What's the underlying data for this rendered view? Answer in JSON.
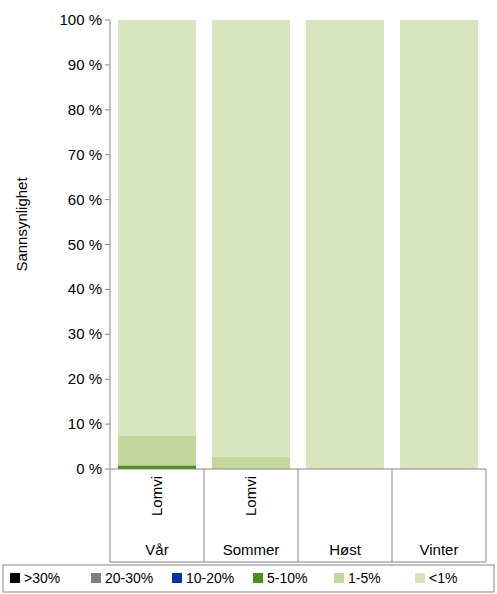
{
  "chart_data": {
    "type": "bar",
    "stacked": true,
    "y_label": "Sannsynlighet",
    "categories": [
      "Vår",
      "Sommer",
      "Høst",
      "Vinter"
    ],
    "subcategories": [
      "Lomvi",
      "Lomvi",
      null,
      null
    ],
    "ylim": [
      0,
      100
    ],
    "yticks": [
      {
        "value": 0,
        "label": "0 %"
      },
      {
        "value": 10,
        "label": "10 %"
      },
      {
        "value": 20,
        "label": "20 %"
      },
      {
        "value": 30,
        "label": "30 %"
      },
      {
        "value": 40,
        "label": "40 %"
      },
      {
        "value": 50,
        "label": "50 %"
      },
      {
        "value": 60,
        "label": "60 %"
      },
      {
        "value": 70,
        "label": "70 %"
      },
      {
        "value": 80,
        "label": "80 %"
      },
      {
        "value": 90,
        "label": "90 %"
      },
      {
        "value": 100,
        "label": "100 %"
      }
    ],
    "grid": false,
    "legend": "bottom",
    "series": [
      {
        "name": ">30%",
        "color": "#000000",
        "values": [
          0,
          0,
          0,
          0
        ]
      },
      {
        "name": "20-30%",
        "color": "#7f7f7f",
        "values": [
          0,
          0,
          0,
          0
        ]
      },
      {
        "name": "10-20%",
        "color": "#0033a0",
        "values": [
          0,
          0,
          0,
          0
        ]
      },
      {
        "name": "5-10%",
        "color": "#4e8f1a",
        "values": [
          0.8,
          0,
          0,
          0
        ]
      },
      {
        "name": "1-5%",
        "color": "#c3d69b",
        "values": [
          6.7,
          2.7,
          0,
          0
        ]
      },
      {
        "name": "<1%",
        "color": "#d7e4bd",
        "values": [
          92.5,
          97.3,
          100,
          100
        ]
      }
    ]
  }
}
